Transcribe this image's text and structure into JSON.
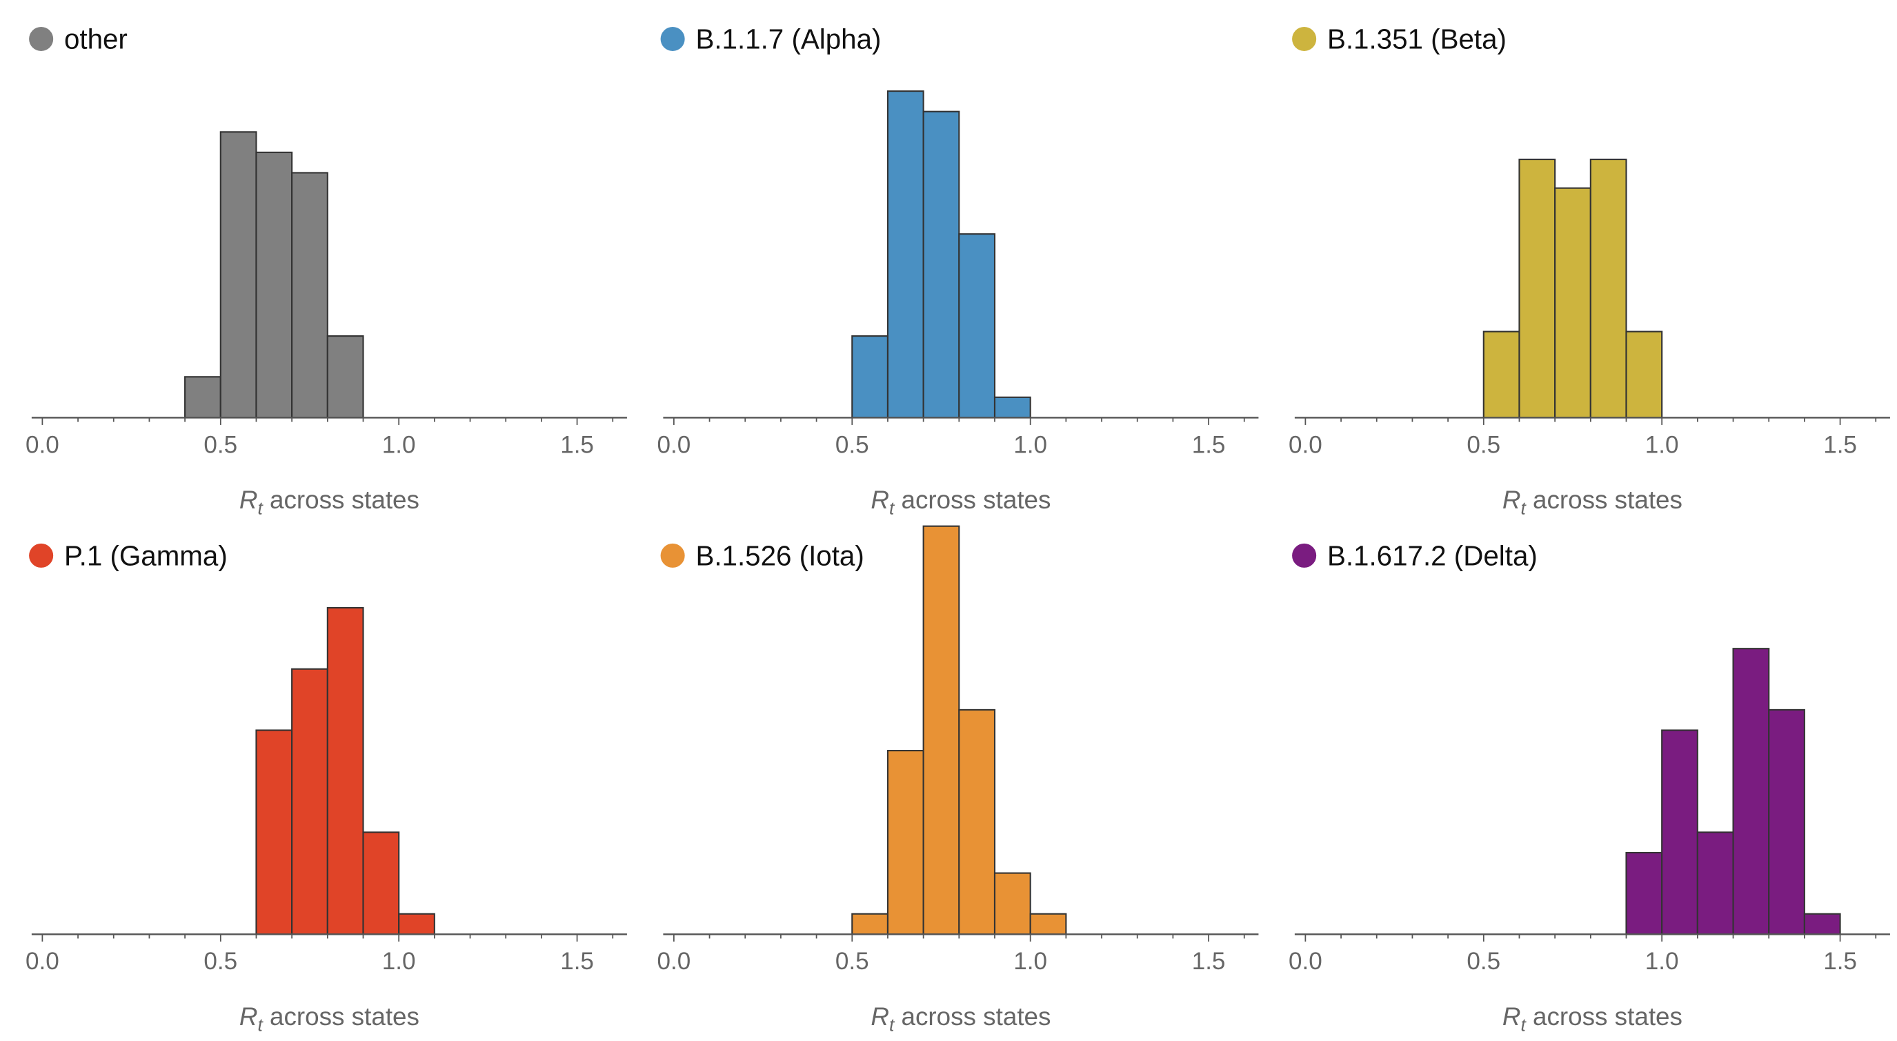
{
  "chart_data": [
    {
      "type": "bar",
      "title": "other",
      "color": "#808080",
      "bin_width": 0.1,
      "bin_starts": [
        0.4,
        0.5,
        0.6,
        0.7,
        0.8
      ],
      "values": [
        2,
        14,
        13,
        12,
        4
      ],
      "xlabel_var": "R",
      "xlabel_sub": "t",
      "xlabel": "across states",
      "xlim": [
        -0.03,
        1.64
      ],
      "xticks": [
        "0.0",
        "0.5",
        "1.0",
        "1.5"
      ]
    },
    {
      "type": "bar",
      "title": "B.1.1.7 (Alpha)",
      "color": "#4a90c2",
      "bin_width": 0.1,
      "bin_starts": [
        0.5,
        0.6,
        0.7,
        0.8,
        0.9
      ],
      "values": [
        4,
        16,
        15,
        9,
        1
      ],
      "xlabel_var": "R",
      "xlabel_sub": "t",
      "xlabel": "across states",
      "xlim": [
        -0.03,
        1.64
      ],
      "xticks": [
        "0.0",
        "0.5",
        "1.0",
        "1.5"
      ]
    },
    {
      "type": "bar",
      "title": "B.1.351 (Beta)",
      "color": "#cdb43e",
      "bin_width": 0.1,
      "bin_starts": [
        0.5,
        0.6,
        0.7,
        0.8,
        0.9
      ],
      "values": [
        3,
        9,
        8,
        9,
        3
      ],
      "xlabel_var": "R",
      "xlabel_sub": "t",
      "xlabel": "across states",
      "xlim": [
        -0.03,
        1.64
      ],
      "xticks": [
        "0.0",
        "0.5",
        "1.0",
        "1.5"
      ]
    },
    {
      "type": "bar",
      "title": "P.1 (Gamma)",
      "color": "#e04428",
      "bin_width": 0.1,
      "bin_starts": [
        0.6,
        0.7,
        0.8,
        0.9,
        1.0
      ],
      "values": [
        10,
        13,
        16,
        5,
        1
      ],
      "xlabel_var": "R",
      "xlabel_sub": "t",
      "xlabel": "across states",
      "xlim": [
        -0.03,
        1.64
      ],
      "xticks": [
        "0.0",
        "0.5",
        "1.0",
        "1.5"
      ]
    },
    {
      "type": "bar",
      "title": "B.1.526 (Iota)",
      "color": "#e89235",
      "bin_width": 0.1,
      "bin_starts": [
        0.5,
        0.6,
        0.7,
        0.8,
        0.9,
        1.0
      ],
      "values": [
        1,
        9,
        20,
        11,
        3,
        1
      ],
      "xlabel_var": "R",
      "xlabel_sub": "t",
      "xlabel": "across states",
      "xlim": [
        -0.03,
        1.64
      ],
      "xticks": [
        "0.0",
        "0.5",
        "1.0",
        "1.5"
      ]
    },
    {
      "type": "bar",
      "title": "B.1.617.2 (Delta)",
      "color": "#7a1c80",
      "bin_width": 0.1,
      "bin_starts": [
        0.9,
        1.0,
        1.1,
        1.2,
        1.3,
        1.4
      ],
      "values": [
        4,
        10,
        5,
        14,
        11,
        1
      ],
      "xlabel_var": "R",
      "xlabel_sub": "t",
      "xlabel": "across states",
      "xlim": [
        -0.03,
        1.64
      ],
      "xticks": [
        "0.0",
        "0.5",
        "1.0",
        "1.5"
      ]
    }
  ]
}
